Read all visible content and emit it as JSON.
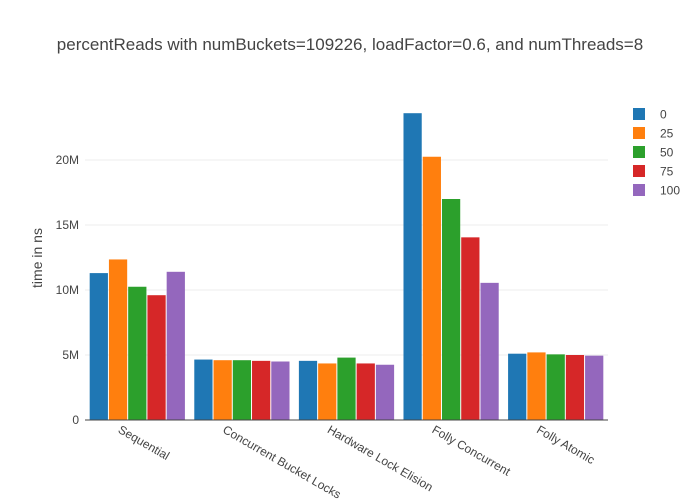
{
  "chart_data": {
    "type": "bar",
    "title": "percentReads with numBuckets=109226, loadFactor=0.6, and numThreads=8",
    "xlabel": "",
    "ylabel": "time in ns",
    "ylim": [
      0,
      25000000
    ],
    "yticks": [
      {
        "value": 0,
        "label": "0"
      },
      {
        "value": 5000000,
        "label": "5M"
      },
      {
        "value": 10000000,
        "label": "10M"
      },
      {
        "value": 15000000,
        "label": "15M"
      },
      {
        "value": 20000000,
        "label": "20M"
      }
    ],
    "grid": true,
    "legend_position": "top-right",
    "categories": [
      "Sequential",
      "Concurrent Bucket Locks",
      "Hardware Lock Elision",
      "Folly Concurrent",
      "Folly Atomic"
    ],
    "series": [
      {
        "name": "0",
        "color": "#1f77b4",
        "values": [
          11300000,
          4650000,
          4550000,
          23600000,
          5100000
        ]
      },
      {
        "name": "25",
        "color": "#ff7f0e",
        "values": [
          12350000,
          4600000,
          4350000,
          20250000,
          5200000
        ]
      },
      {
        "name": "50",
        "color": "#2ca02c",
        "values": [
          10250000,
          4600000,
          4800000,
          17000000,
          5050000
        ]
      },
      {
        "name": "75",
        "color": "#d62728",
        "values": [
          9600000,
          4550000,
          4350000,
          14050000,
          5000000
        ]
      },
      {
        "name": "100",
        "color": "#9467bd",
        "values": [
          11400000,
          4500000,
          4250000,
          10550000,
          4950000
        ]
      }
    ]
  }
}
